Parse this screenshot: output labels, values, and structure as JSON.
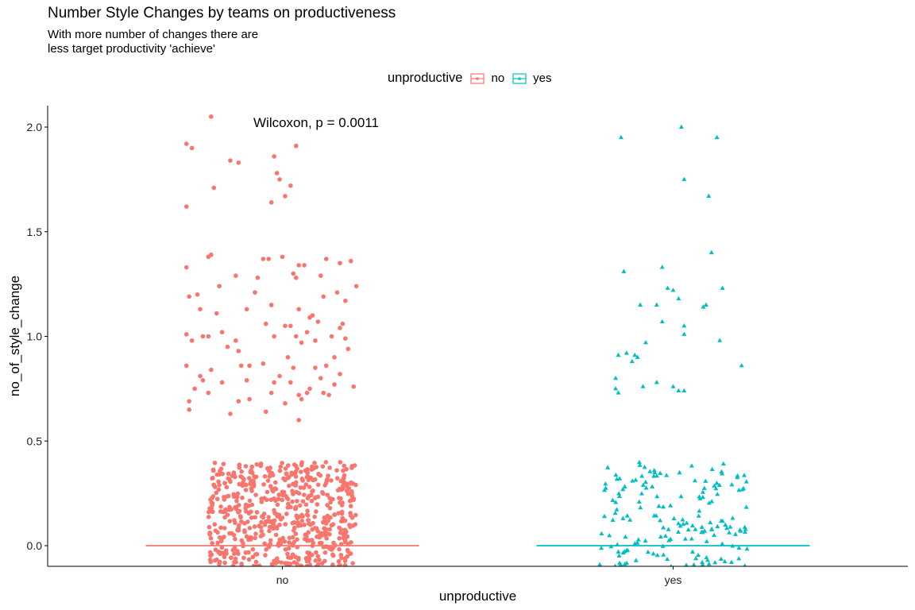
{
  "chart_data": {
    "type": "scatter",
    "title": "Number Style Changes by teams on productiveness",
    "subtitle_lines": [
      "With more number of changes there are",
      "less target productivity 'achieve'"
    ],
    "xlabel": "unproductive",
    "ylabel": "no_of_style_change",
    "categories": [
      "no",
      "yes"
    ],
    "legend": {
      "title": "unproductive",
      "position": "top",
      "entries": [
        "no",
        "yes"
      ]
    },
    "yticks": [
      "0.0",
      "0.5",
      "1.0",
      "1.5",
      "2.0"
    ],
    "ylim": [
      -0.1,
      2.1
    ],
    "annotation": "Wilcoxon, p = 0.0011",
    "grid": false,
    "colors": {
      "no": "#F8766D",
      "yes": "#00BFC4"
    },
    "series": [
      {
        "name": "no",
        "category": "no",
        "marker": "circle",
        "median": 0,
        "points": [
          [
            -0.26,
            2.05
          ],
          [
            -0.35,
            1.92
          ],
          [
            -0.33,
            1.9
          ],
          [
            -0.19,
            1.84
          ],
          [
            -0.16,
            1.83
          ],
          [
            -0.03,
            1.86
          ],
          [
            0.05,
            1.91
          ],
          [
            -0.02,
            1.78
          ],
          [
            -0.01,
            1.75
          ],
          [
            0.03,
            1.72
          ],
          [
            0.01,
            1.67
          ],
          [
            -0.04,
            1.64
          ],
          [
            -0.25,
            1.71
          ],
          [
            -0.35,
            1.62
          ],
          [
            -0.26,
            1.39
          ],
          [
            -0.27,
            1.38
          ],
          [
            -0.35,
            1.33
          ],
          [
            -0.07,
            1.37
          ],
          [
            -0.05,
            1.37
          ],
          [
            0.0,
            1.38
          ],
          [
            0.06,
            1.34
          ],
          [
            0.08,
            1.34
          ],
          [
            0.16,
            1.37
          ],
          [
            0.25,
            1.36
          ],
          [
            -0.17,
            1.29
          ],
          [
            -0.09,
            1.28
          ],
          [
            0.04,
            1.3
          ],
          [
            0.05,
            1.28
          ],
          [
            0.14,
            1.29
          ],
          [
            0.27,
            1.24
          ],
          [
            0.21,
            1.35
          ],
          [
            -0.23,
            1.24
          ],
          [
            -0.34,
            1.19
          ],
          [
            -0.31,
            1.2
          ],
          [
            -0.1,
            1.21
          ],
          [
            0.2,
            1.21
          ],
          [
            0.15,
            1.19
          ],
          [
            0.23,
            1.17
          ],
          [
            -0.3,
            1.13
          ],
          [
            -0.24,
            1.11
          ],
          [
            -0.13,
            1.13
          ],
          [
            -0.04,
            1.15
          ],
          [
            -0.06,
            1.06
          ],
          [
            0.06,
            1.13
          ],
          [
            0.1,
            1.09
          ],
          [
            0.11,
            1.1
          ],
          [
            0.13,
            1.07
          ],
          [
            0.01,
            1.05
          ],
          [
            0.03,
            1.05
          ],
          [
            0.22,
            1.06
          ],
          [
            0.21,
            1.04
          ],
          [
            -0.35,
            1.01
          ],
          [
            -0.33,
            0.98
          ],
          [
            -0.27,
            1.0
          ],
          [
            -0.22,
            1.02
          ],
          [
            -0.29,
            1.0
          ],
          [
            -0.17,
            0.98
          ],
          [
            -0.16,
            0.93
          ],
          [
            -0.2,
            0.95
          ],
          [
            -0.15,
            0.86
          ],
          [
            -0.07,
            0.87
          ],
          [
            -0.03,
            1.0
          ],
          [
            0.05,
            1.0
          ],
          [
            0.07,
            0.97
          ],
          [
            0.09,
            1.02
          ],
          [
            0.12,
            0.98
          ],
          [
            0.18,
            1.0
          ],
          [
            0.23,
            0.99
          ],
          [
            0.24,
            0.94
          ],
          [
            0.19,
            0.9
          ],
          [
            0.16,
            0.86
          ],
          [
            0.12,
            0.85
          ],
          [
            0.04,
            0.85
          ],
          [
            0.02,
            0.9
          ],
          [
            -0.01,
            0.81
          ],
          [
            -0.12,
            0.86
          ],
          [
            -0.26,
            0.84
          ],
          [
            -0.35,
            0.86
          ],
          [
            -0.3,
            0.81
          ],
          [
            -0.32,
            0.75
          ],
          [
            -0.34,
            0.69
          ],
          [
            -0.34,
            0.65
          ],
          [
            -0.29,
            0.79
          ],
          [
            -0.27,
            0.73
          ],
          [
            -0.22,
            0.78
          ],
          [
            -0.12,
            0.7
          ],
          [
            -0.16,
            0.69
          ],
          [
            -0.13,
            0.79
          ],
          [
            -0.03,
            0.78
          ],
          [
            0.03,
            0.78
          ],
          [
            0.07,
            0.7
          ],
          [
            0.1,
            0.75
          ],
          [
            0.15,
            0.73
          ],
          [
            0.17,
            0.72
          ],
          [
            0.19,
            0.77
          ],
          [
            0.14,
            0.8
          ],
          [
            0.09,
            0.73
          ],
          [
            0.06,
            0.72
          ],
          [
            -0.04,
            0.73
          ],
          [
            -0.06,
            0.64
          ],
          [
            0.01,
            0.68
          ],
          [
            -0.19,
            0.63
          ],
          [
            0.06,
            0.6
          ],
          [
            0.26,
            0.76
          ],
          [
            0.21,
            0.82
          ]
        ],
        "dense_band": {
          "y_range": [
            -0.1,
            0.4
          ],
          "x_half_width": 0.27,
          "approx_count": 620
        }
      },
      {
        "name": "yes",
        "category": "yes",
        "marker": "triangle",
        "median": 0,
        "points": [
          [
            0.03,
            2.0
          ],
          [
            -0.19,
            1.95
          ],
          [
            0.16,
            1.95
          ],
          [
            0.04,
            1.75
          ],
          [
            0.13,
            1.67
          ],
          [
            0.14,
            1.4
          ],
          [
            -0.18,
            1.31
          ],
          [
            -0.04,
            1.33
          ],
          [
            0.18,
            1.23
          ],
          [
            -0.02,
            1.23
          ],
          [
            0.0,
            1.22
          ],
          [
            0.02,
            1.18
          ],
          [
            0.11,
            1.14
          ],
          [
            0.12,
            1.15
          ],
          [
            -0.06,
            1.15
          ],
          [
            -0.12,
            1.15
          ],
          [
            -0.04,
            1.07
          ],
          [
            0.04,
            1.05
          ],
          [
            0.04,
            1.01
          ],
          [
            0.17,
            0.98
          ],
          [
            -0.17,
            0.92
          ],
          [
            -0.2,
            0.91
          ],
          [
            -0.14,
            0.91
          ],
          [
            -0.15,
            0.88
          ],
          [
            -0.13,
            0.9
          ],
          [
            -0.1,
            0.97
          ],
          [
            0.25,
            0.86
          ],
          [
            -0.21,
            0.8
          ],
          [
            -0.21,
            0.75
          ],
          [
            -0.2,
            0.73
          ],
          [
            -0.11,
            0.76
          ],
          [
            -0.06,
            0.78
          ],
          [
            -0.0,
            0.76
          ],
          [
            0.02,
            0.74
          ],
          [
            0.04,
            0.74
          ]
        ],
        "dense_band": {
          "y_range": [
            -0.1,
            0.4
          ],
          "x_half_width": 0.27,
          "approx_count": 170
        }
      }
    ]
  }
}
